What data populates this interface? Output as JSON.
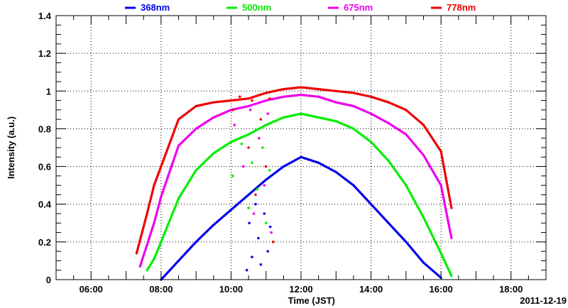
{
  "chart_data": {
    "type": "scatter",
    "title": "",
    "xlabel": "Time (JST)",
    "ylabel": "Intensity (a.u.)",
    "date_label": "2011-12-19",
    "xlim": [
      5.0,
      19.0
    ],
    "ylim": [
      0,
      1.4
    ],
    "x_unit": "hour",
    "grid": true,
    "legend_position": "top",
    "x_ticks": [
      {
        "value": 6,
        "label": "06:00"
      },
      {
        "value": 8,
        "label": "08:00"
      },
      {
        "value": 10,
        "label": "10:00"
      },
      {
        "value": 12,
        "label": "12:00"
      },
      {
        "value": 14,
        "label": "14:00"
      },
      {
        "value": 16,
        "label": "16:00"
      },
      {
        "value": 18,
        "label": "18:00"
      }
    ],
    "y_ticks": [
      {
        "value": 0,
        "label": "0"
      },
      {
        "value": 0.2,
        "label": "0.2"
      },
      {
        "value": 0.4,
        "label": "0.4"
      },
      {
        "value": 0.6,
        "label": "0.6"
      },
      {
        "value": 0.8,
        "label": "0.8"
      },
      {
        "value": 1.0,
        "label": "1"
      },
      {
        "value": 1.2,
        "label": "1.2"
      },
      {
        "value": 1.4,
        "label": "1.4"
      }
    ],
    "series": [
      {
        "name": "368nm",
        "color": "#0000ee",
        "x": [
          8.0,
          8.5,
          9.0,
          9.5,
          10.0,
          10.5,
          11.0,
          11.5,
          12.0,
          12.5,
          13.0,
          13.5,
          14.0,
          14.5,
          15.0,
          15.5,
          16.0
        ],
        "y": [
          0.0,
          0.1,
          0.2,
          0.29,
          0.37,
          0.45,
          0.53,
          0.6,
          0.65,
          0.62,
          0.57,
          0.5,
          0.4,
          0.3,
          0.2,
          0.09,
          0.01
        ],
        "scatter_x": [
          10.45,
          10.52,
          10.6,
          10.7,
          10.78,
          10.85,
          10.95,
          11.05,
          11.12
        ],
        "scatter_y": [
          0.05,
          0.3,
          0.12,
          0.4,
          0.22,
          0.08,
          0.35,
          0.15,
          0.28
        ]
      },
      {
        "name": "500nm",
        "color": "#00ee00",
        "x": [
          7.6,
          7.8,
          8.0,
          8.5,
          9.0,
          9.5,
          10.0,
          10.5,
          11.0,
          11.5,
          12.0,
          12.5,
          13.0,
          13.5,
          14.0,
          14.5,
          15.0,
          15.5,
          16.0,
          16.3
        ],
        "y": [
          0.05,
          0.11,
          0.2,
          0.43,
          0.58,
          0.67,
          0.73,
          0.77,
          0.82,
          0.86,
          0.88,
          0.86,
          0.84,
          0.8,
          0.73,
          0.63,
          0.5,
          0.33,
          0.14,
          0.02
        ],
        "scatter_x": [
          10.05,
          10.3,
          10.5,
          10.6,
          10.75,
          10.9,
          11.0,
          11.1
        ],
        "scatter_y": [
          0.55,
          0.72,
          0.38,
          0.62,
          0.48,
          0.7,
          0.3,
          0.58
        ]
      },
      {
        "name": "675nm",
        "color": "#ee00ee",
        "x": [
          7.4,
          7.8,
          8.0,
          8.5,
          9.0,
          9.5,
          10.0,
          10.5,
          11.0,
          11.5,
          12.0,
          12.5,
          13.0,
          13.5,
          14.0,
          14.5,
          15.0,
          15.5,
          16.0,
          16.3
        ],
        "y": [
          0.07,
          0.3,
          0.44,
          0.71,
          0.8,
          0.86,
          0.9,
          0.92,
          0.95,
          0.97,
          0.98,
          0.97,
          0.94,
          0.92,
          0.88,
          0.83,
          0.77,
          0.66,
          0.5,
          0.22
        ],
        "scatter_x": [
          10.1,
          10.35,
          10.55,
          10.65,
          10.8,
          10.95,
          11.05,
          11.15
        ],
        "scatter_y": [
          0.82,
          0.6,
          0.9,
          0.35,
          0.75,
          0.5,
          0.88,
          0.25
        ]
      },
      {
        "name": "778nm",
        "color": "#ee0000",
        "x": [
          7.3,
          7.6,
          7.8,
          8.0,
          8.5,
          9.0,
          9.5,
          10.0,
          10.5,
          11.0,
          11.5,
          12.0,
          12.5,
          13.0,
          13.5,
          14.0,
          14.5,
          15.0,
          15.5,
          16.0,
          16.3
        ],
        "y": [
          0.14,
          0.35,
          0.5,
          0.6,
          0.85,
          0.92,
          0.94,
          0.95,
          0.96,
          0.99,
          1.01,
          1.02,
          1.01,
          1.0,
          0.99,
          0.97,
          0.94,
          0.9,
          0.82,
          0.68,
          0.38
        ],
        "scatter_x": [
          10.05,
          10.25,
          10.5,
          10.6,
          10.7,
          10.85,
          11.0,
          11.1,
          11.2
        ],
        "scatter_y": [
          0.9,
          0.97,
          0.7,
          0.95,
          0.45,
          0.85,
          0.6,
          0.96,
          0.2
        ]
      }
    ]
  }
}
